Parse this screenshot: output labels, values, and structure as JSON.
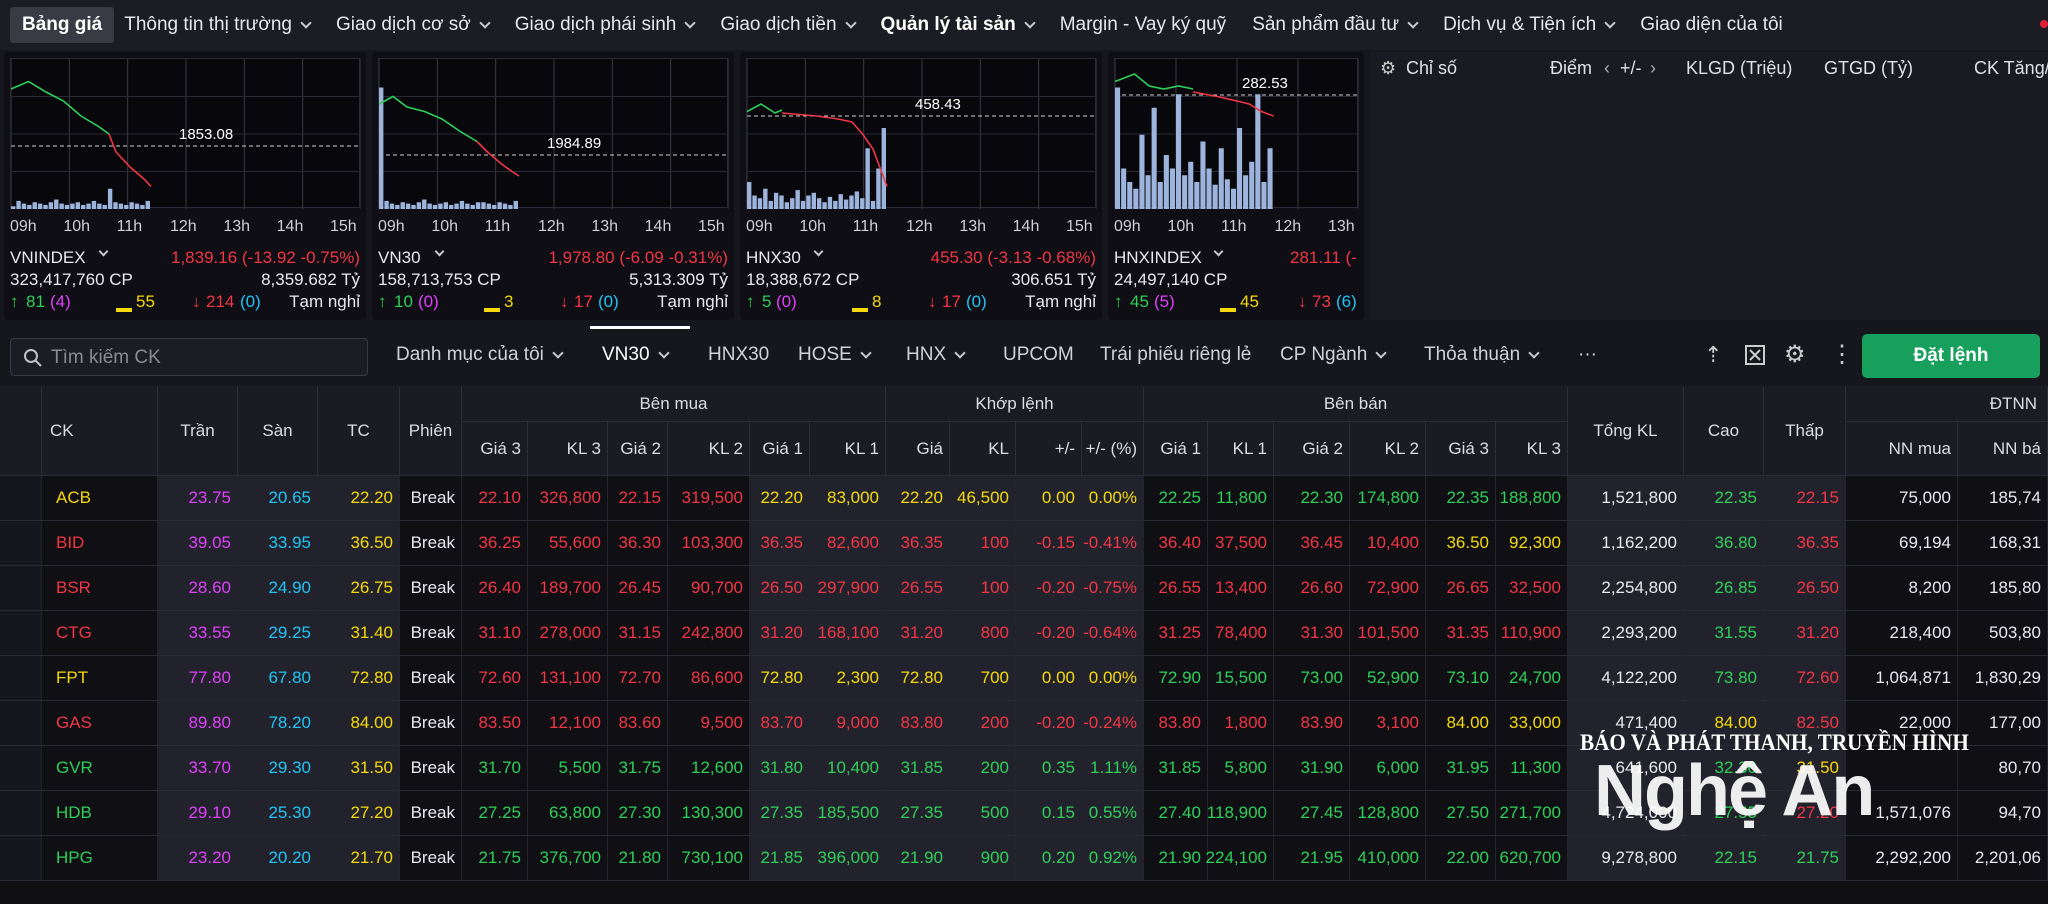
{
  "nav": {
    "items": [
      {
        "label": "Bảng giá",
        "chev": false,
        "cls": "active"
      },
      {
        "label": "Thông tin thị trường",
        "chev": true,
        "cls": ""
      },
      {
        "label": "Giao dịch cơ sở",
        "chev": true,
        "cls": ""
      },
      {
        "label": "Giao dịch phái sinh",
        "chev": true,
        "cls": ""
      },
      {
        "label": "Giao dịch tiền",
        "chev": true,
        "cls": ""
      },
      {
        "label": "Quản lý tài sản",
        "chev": true,
        "cls": "bold"
      },
      {
        "label": "Margin - Vay ký quỹ",
        "chev": false,
        "cls": ""
      },
      {
        "label": "Sản phẩm đầu tư",
        "chev": true,
        "cls": ""
      },
      {
        "label": "Dịch vụ & Tiện ích",
        "chev": true,
        "cls": ""
      },
      {
        "label": "Giao diện của tôi",
        "chev": false,
        "cls": ""
      }
    ]
  },
  "indices": [
    {
      "name": "VNINDEX",
      "ref": "1853.08",
      "value": "1,839.16 (-13.92 -0.75%)",
      "volume": "323,417,760 CP",
      "gtgd": "8,359.682 Tỷ",
      "up": "81",
      "ceil": "(4)",
      "flat": "55",
      "down": "214",
      "floor": "(0)",
      "status": "Tạm nghỉ",
      "times": [
        "09h",
        "10h",
        "11h",
        "12h",
        "13h",
        "14h",
        "15h"
      ]
    },
    {
      "name": "VN30",
      "ref": "1984.89",
      "value": "1,978.80 (-6.09 -0.31%)",
      "volume": "158,713,753 CP",
      "gtgd": "5,313.309 Tỷ",
      "up": "10",
      "ceil": "(0)",
      "flat": "3",
      "down": "17",
      "floor": "(0)",
      "status": "Tạm nghỉ",
      "times": [
        "09h",
        "10h",
        "11h",
        "12h",
        "13h",
        "14h",
        "15h"
      ]
    },
    {
      "name": "HNX30",
      "ref": "458.43",
      "value": "455.30 (-3.13 -0.68%)",
      "volume": "18,388,672 CP",
      "gtgd": "306.651 Tỷ",
      "up": "5",
      "ceil": "(0)",
      "flat": "8",
      "down": "17",
      "floor": "(0)",
      "status": "Tạm nghỉ",
      "times": [
        "09h",
        "10h",
        "11h",
        "12h",
        "13h",
        "14h",
        "15h"
      ]
    },
    {
      "name": "HNXINDEX",
      "ref": "282.53",
      "value": "281.11 (-",
      "volume": "24,497,140 CP",
      "gtgd": "",
      "up": "45",
      "ceil": "(5)",
      "flat": "45",
      "down": "73",
      "floor": "(6)",
      "status": "",
      "times": [
        "09h",
        "10h",
        "11h",
        "12h",
        "13h"
      ]
    }
  ],
  "summary": {
    "headers": [
      "Chỉ số",
      "Điểm",
      "+/-",
      "KLGD (Triệu)",
      "GTGD (Tỷ)",
      "CK Tăng/"
    ]
  },
  "toolbar": {
    "search_placeholder": "Tìm kiếm CK",
    "tabs": [
      {
        "label": "Danh mục của tôi",
        "chev": true
      },
      {
        "label": "VN30",
        "chev": true
      },
      {
        "label": "HNX30",
        "chev": false
      },
      {
        "label": "HOSE",
        "chev": true
      },
      {
        "label": "HNX",
        "chev": true
      },
      {
        "label": "UPCOM",
        "chev": false
      },
      {
        "label": "Trái phiếu riêng lẻ",
        "chev": false
      },
      {
        "label": "CP Ngành",
        "chev": true
      },
      {
        "label": "Thỏa thuận",
        "chev": true
      },
      {
        "label": "···",
        "chev": false
      }
    ],
    "order_button": "Đặt lệnh"
  },
  "table": {
    "groups": {
      "ben_mua": "Bên mua",
      "khop_lenh": "Khớp lệnh",
      "ben_ban": "Bên bán",
      "dtnn": "ĐTNN"
    },
    "headers": [
      "CK",
      "Trần",
      "Sàn",
      "TC",
      "Phiên",
      "Giá 3",
      "KL 3",
      "Giá 2",
      "KL 2",
      "Giá 1",
      "KL 1",
      "Giá",
      "KL",
      "+/-",
      "+/- (%)",
      "Giá 1",
      "KL 1",
      "Giá 2",
      "KL 2",
      "Giá 3",
      "KL 3",
      "Tổng KL",
      "Cao",
      "Thấp",
      "NN mua",
      "NN bá"
    ],
    "rows": [
      [
        "ACB",
        "23.75",
        "20.65",
        "22.20",
        "Break",
        "22.10",
        "326,800",
        "22.15",
        "319,500",
        "22.20",
        "83,000",
        "22.20",
        "46,500",
        "0.00",
        "0.00%",
        "22.25",
        "11,800",
        "22.30",
        "174,800",
        "22.35",
        "188,800",
        "1,521,800",
        "22.35",
        "22.15",
        "75,000",
        "185,74"
      ],
      [
        "BID",
        "39.05",
        "33.95",
        "36.50",
        "Break",
        "36.25",
        "55,600",
        "36.30",
        "103,300",
        "36.35",
        "82,600",
        "36.35",
        "100",
        "-0.15",
        "-0.41%",
        "36.40",
        "37,500",
        "36.45",
        "10,400",
        "36.50",
        "92,300",
        "1,162,200",
        "36.80",
        "36.35",
        "69,194",
        "168,31"
      ],
      [
        "BSR",
        "28.60",
        "24.90",
        "26.75",
        "Break",
        "26.40",
        "189,700",
        "26.45",
        "90,700",
        "26.50",
        "297,900",
        "26.55",
        "100",
        "-0.20",
        "-0.75%",
        "26.55",
        "13,400",
        "26.60",
        "72,900",
        "26.65",
        "32,500",
        "2,254,800",
        "26.85",
        "26.50",
        "8,200",
        "185,80"
      ],
      [
        "CTG",
        "33.55",
        "29.25",
        "31.40",
        "Break",
        "31.10",
        "278,000",
        "31.15",
        "242,800",
        "31.20",
        "168,100",
        "31.20",
        "800",
        "-0.20",
        "-0.64%",
        "31.25",
        "78,400",
        "31.30",
        "101,500",
        "31.35",
        "110,900",
        "2,293,200",
        "31.55",
        "31.20",
        "218,400",
        "503,80"
      ],
      [
        "FPT",
        "77.80",
        "67.80",
        "72.80",
        "Break",
        "72.60",
        "131,100",
        "72.70",
        "86,600",
        "72.80",
        "2,300",
        "72.80",
        "700",
        "0.00",
        "0.00%",
        "72.90",
        "15,500",
        "73.00",
        "52,900",
        "73.10",
        "24,700",
        "4,122,200",
        "73.80",
        "72.60",
        "1,064,871",
        "1,830,29"
      ],
      [
        "GAS",
        "89.80",
        "78.20",
        "84.00",
        "Break",
        "83.50",
        "12,100",
        "83.60",
        "9,500",
        "83.70",
        "9,000",
        "83.80",
        "200",
        "-0.20",
        "-0.24%",
        "83.80",
        "1,800",
        "83.90",
        "3,100",
        "84.00",
        "33,000",
        "471,400",
        "84.00",
        "82.50",
        "22,000",
        "177,00"
      ],
      [
        "GVR",
        "33.70",
        "29.30",
        "31.50",
        "Break",
        "31.70",
        "5,500",
        "31.75",
        "12,600",
        "31.80",
        "10,400",
        "31.85",
        "200",
        "0.35",
        "1.11%",
        "31.85",
        "5,800",
        "31.90",
        "6,000",
        "31.95",
        "11,300",
        "641,600",
        "32.30",
        "31.50",
        "",
        "80,70"
      ],
      [
        "HDB",
        "29.10",
        "25.30",
        "27.20",
        "Break",
        "27.25",
        "63,800",
        "27.30",
        "130,300",
        "27.35",
        "185,500",
        "27.35",
        "500",
        "0.15",
        "0.55%",
        "27.40",
        "118,900",
        "27.45",
        "128,800",
        "27.50",
        "271,700",
        "4,724,000",
        "27.55",
        "27.20",
        "1,571,076",
        "94,70"
      ],
      [
        "HPG",
        "23.20",
        "20.20",
        "21.70",
        "Break",
        "21.75",
        "376,700",
        "21.80",
        "730,100",
        "21.85",
        "396,000",
        "21.90",
        "900",
        "0.20",
        "0.92%",
        "21.90",
        "224,100",
        "21.95",
        "410,000",
        "22.00",
        "620,700",
        "9,278,800",
        "22.15",
        "21.75",
        "2,292,200",
        "2,201,06"
      ]
    ],
    "colors": [
      [
        "y",
        "m",
        "c",
        "y",
        "w",
        "r",
        "r",
        "r",
        "r",
        "y",
        "y",
        "y",
        "y",
        "y",
        "y",
        "g",
        "g",
        "g",
        "g",
        "g",
        "g",
        "w",
        "g",
        "r",
        "w",
        "w"
      ],
      [
        "r",
        "m",
        "c",
        "y",
        "w",
        "r",
        "r",
        "r",
        "r",
        "r",
        "r",
        "r",
        "r",
        "r",
        "r",
        "r",
        "r",
        "r",
        "r",
        "y",
        "y",
        "w",
        "g",
        "r",
        "w",
        "w"
      ],
      [
        "r",
        "m",
        "c",
        "y",
        "w",
        "r",
        "r",
        "r",
        "r",
        "r",
        "r",
        "r",
        "r",
        "r",
        "r",
        "r",
        "r",
        "r",
        "r",
        "r",
        "r",
        "w",
        "g",
        "r",
        "w",
        "w"
      ],
      [
        "r",
        "m",
        "c",
        "y",
        "w",
        "r",
        "r",
        "r",
        "r",
        "r",
        "r",
        "r",
        "r",
        "r",
        "r",
        "r",
        "r",
        "r",
        "r",
        "r",
        "r",
        "w",
        "g",
        "r",
        "w",
        "w"
      ],
      [
        "y",
        "m",
        "c",
        "y",
        "w",
        "r",
        "r",
        "r",
        "r",
        "y",
        "y",
        "y",
        "y",
        "y",
        "y",
        "g",
        "g",
        "g",
        "g",
        "g",
        "g",
        "w",
        "g",
        "r",
        "w",
        "w"
      ],
      [
        "r",
        "m",
        "c",
        "y",
        "w",
        "r",
        "r",
        "r",
        "r",
        "r",
        "r",
        "r",
        "r",
        "r",
        "r",
        "r",
        "r",
        "r",
        "r",
        "y",
        "y",
        "w",
        "y",
        "r",
        "w",
        "w"
      ],
      [
        "g",
        "m",
        "c",
        "y",
        "w",
        "g",
        "g",
        "g",
        "g",
        "g",
        "g",
        "g",
        "g",
        "g",
        "g",
        "g",
        "g",
        "g",
        "g",
        "g",
        "g",
        "w",
        "g",
        "y",
        "w",
        "w"
      ],
      [
        "g",
        "m",
        "c",
        "y",
        "w",
        "g",
        "g",
        "g",
        "g",
        "g",
        "g",
        "g",
        "g",
        "g",
        "g",
        "g",
        "g",
        "g",
        "g",
        "g",
        "g",
        "w",
        "g",
        "r",
        "w",
        "w"
      ],
      [
        "g",
        "m",
        "c",
        "y",
        "w",
        "g",
        "g",
        "g",
        "g",
        "g",
        "g",
        "g",
        "g",
        "g",
        "g",
        "g",
        "g",
        "g",
        "g",
        "g",
        "g",
        "w",
        "g",
        "g",
        "w",
        "w"
      ]
    ]
  },
  "watermark": {
    "line1": "BÁO VÀ PHÁT THANH, TRUYỀN HÌNH",
    "line2": "Nghệ An"
  }
}
